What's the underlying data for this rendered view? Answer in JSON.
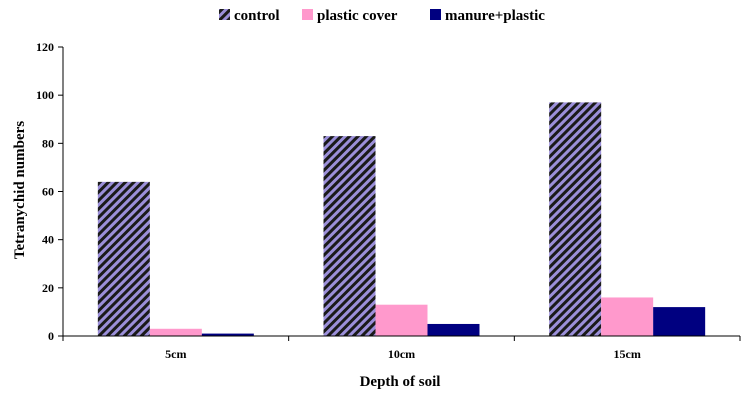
{
  "chart_data": {
    "type": "bar",
    "title": "",
    "xlabel": "Depth of soil",
    "ylabel": "Tetranychid numbers",
    "categories": [
      "5cm",
      "10cm",
      "15cm"
    ],
    "ylim": [
      0,
      120
    ],
    "yticks": [
      0,
      20,
      40,
      60,
      80,
      100,
      120
    ],
    "grid": false,
    "legend_position": "top",
    "series": [
      {
        "name": "control",
        "values": [
          64,
          83,
          97
        ],
        "color": "#9b8fd9",
        "pattern": "diagonal-hatch"
      },
      {
        "name": "plastic cover",
        "values": [
          3,
          13,
          16
        ],
        "color": "#ff99cc",
        "pattern": "solid"
      },
      {
        "name": "manure+plastic",
        "values": [
          1,
          5,
          12
        ],
        "color": "#000080",
        "pattern": "solid"
      }
    ]
  }
}
